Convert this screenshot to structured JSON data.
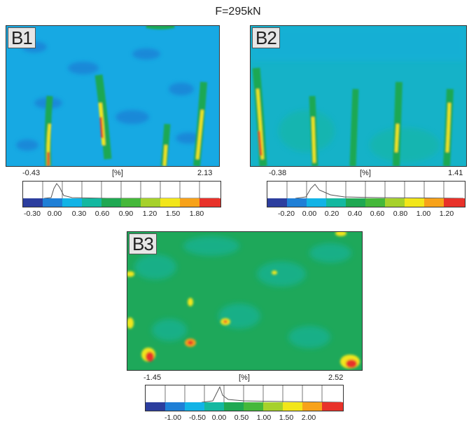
{
  "title": "F=295kN",
  "panels": [
    {
      "label": "B1",
      "min": "-0.43",
      "unit": "[%]",
      "max": "2.13",
      "ticks": [
        "-0.30",
        "0.00",
        "0.30",
        "0.60",
        "0.90",
        "1.20",
        "1.50",
        "1.80"
      ]
    },
    {
      "label": "B2",
      "min": "-0.38",
      "unit": "[%]",
      "max": "1.41",
      "ticks": [
        "-0.20",
        "0.00",
        "0.20",
        "0.40",
        "0.60",
        "0.80",
        "1.00",
        "1.20"
      ]
    },
    {
      "label": "B3",
      "min": "-1.45",
      "unit": "[%]",
      "max": "2.52",
      "ticks": [
        "-1.00",
        "-0.50",
        "0.00",
        "0.50",
        "1.00",
        "1.50",
        "2.00"
      ]
    }
  ],
  "colors": {
    "scale": [
      "#2c3e9e",
      "#1f7fd6",
      "#12b3e6",
      "#14b8a0",
      "#1fa852",
      "#45b83a",
      "#a6d12b",
      "#f2e61a",
      "#f7a21a",
      "#e8322a"
    ]
  }
}
